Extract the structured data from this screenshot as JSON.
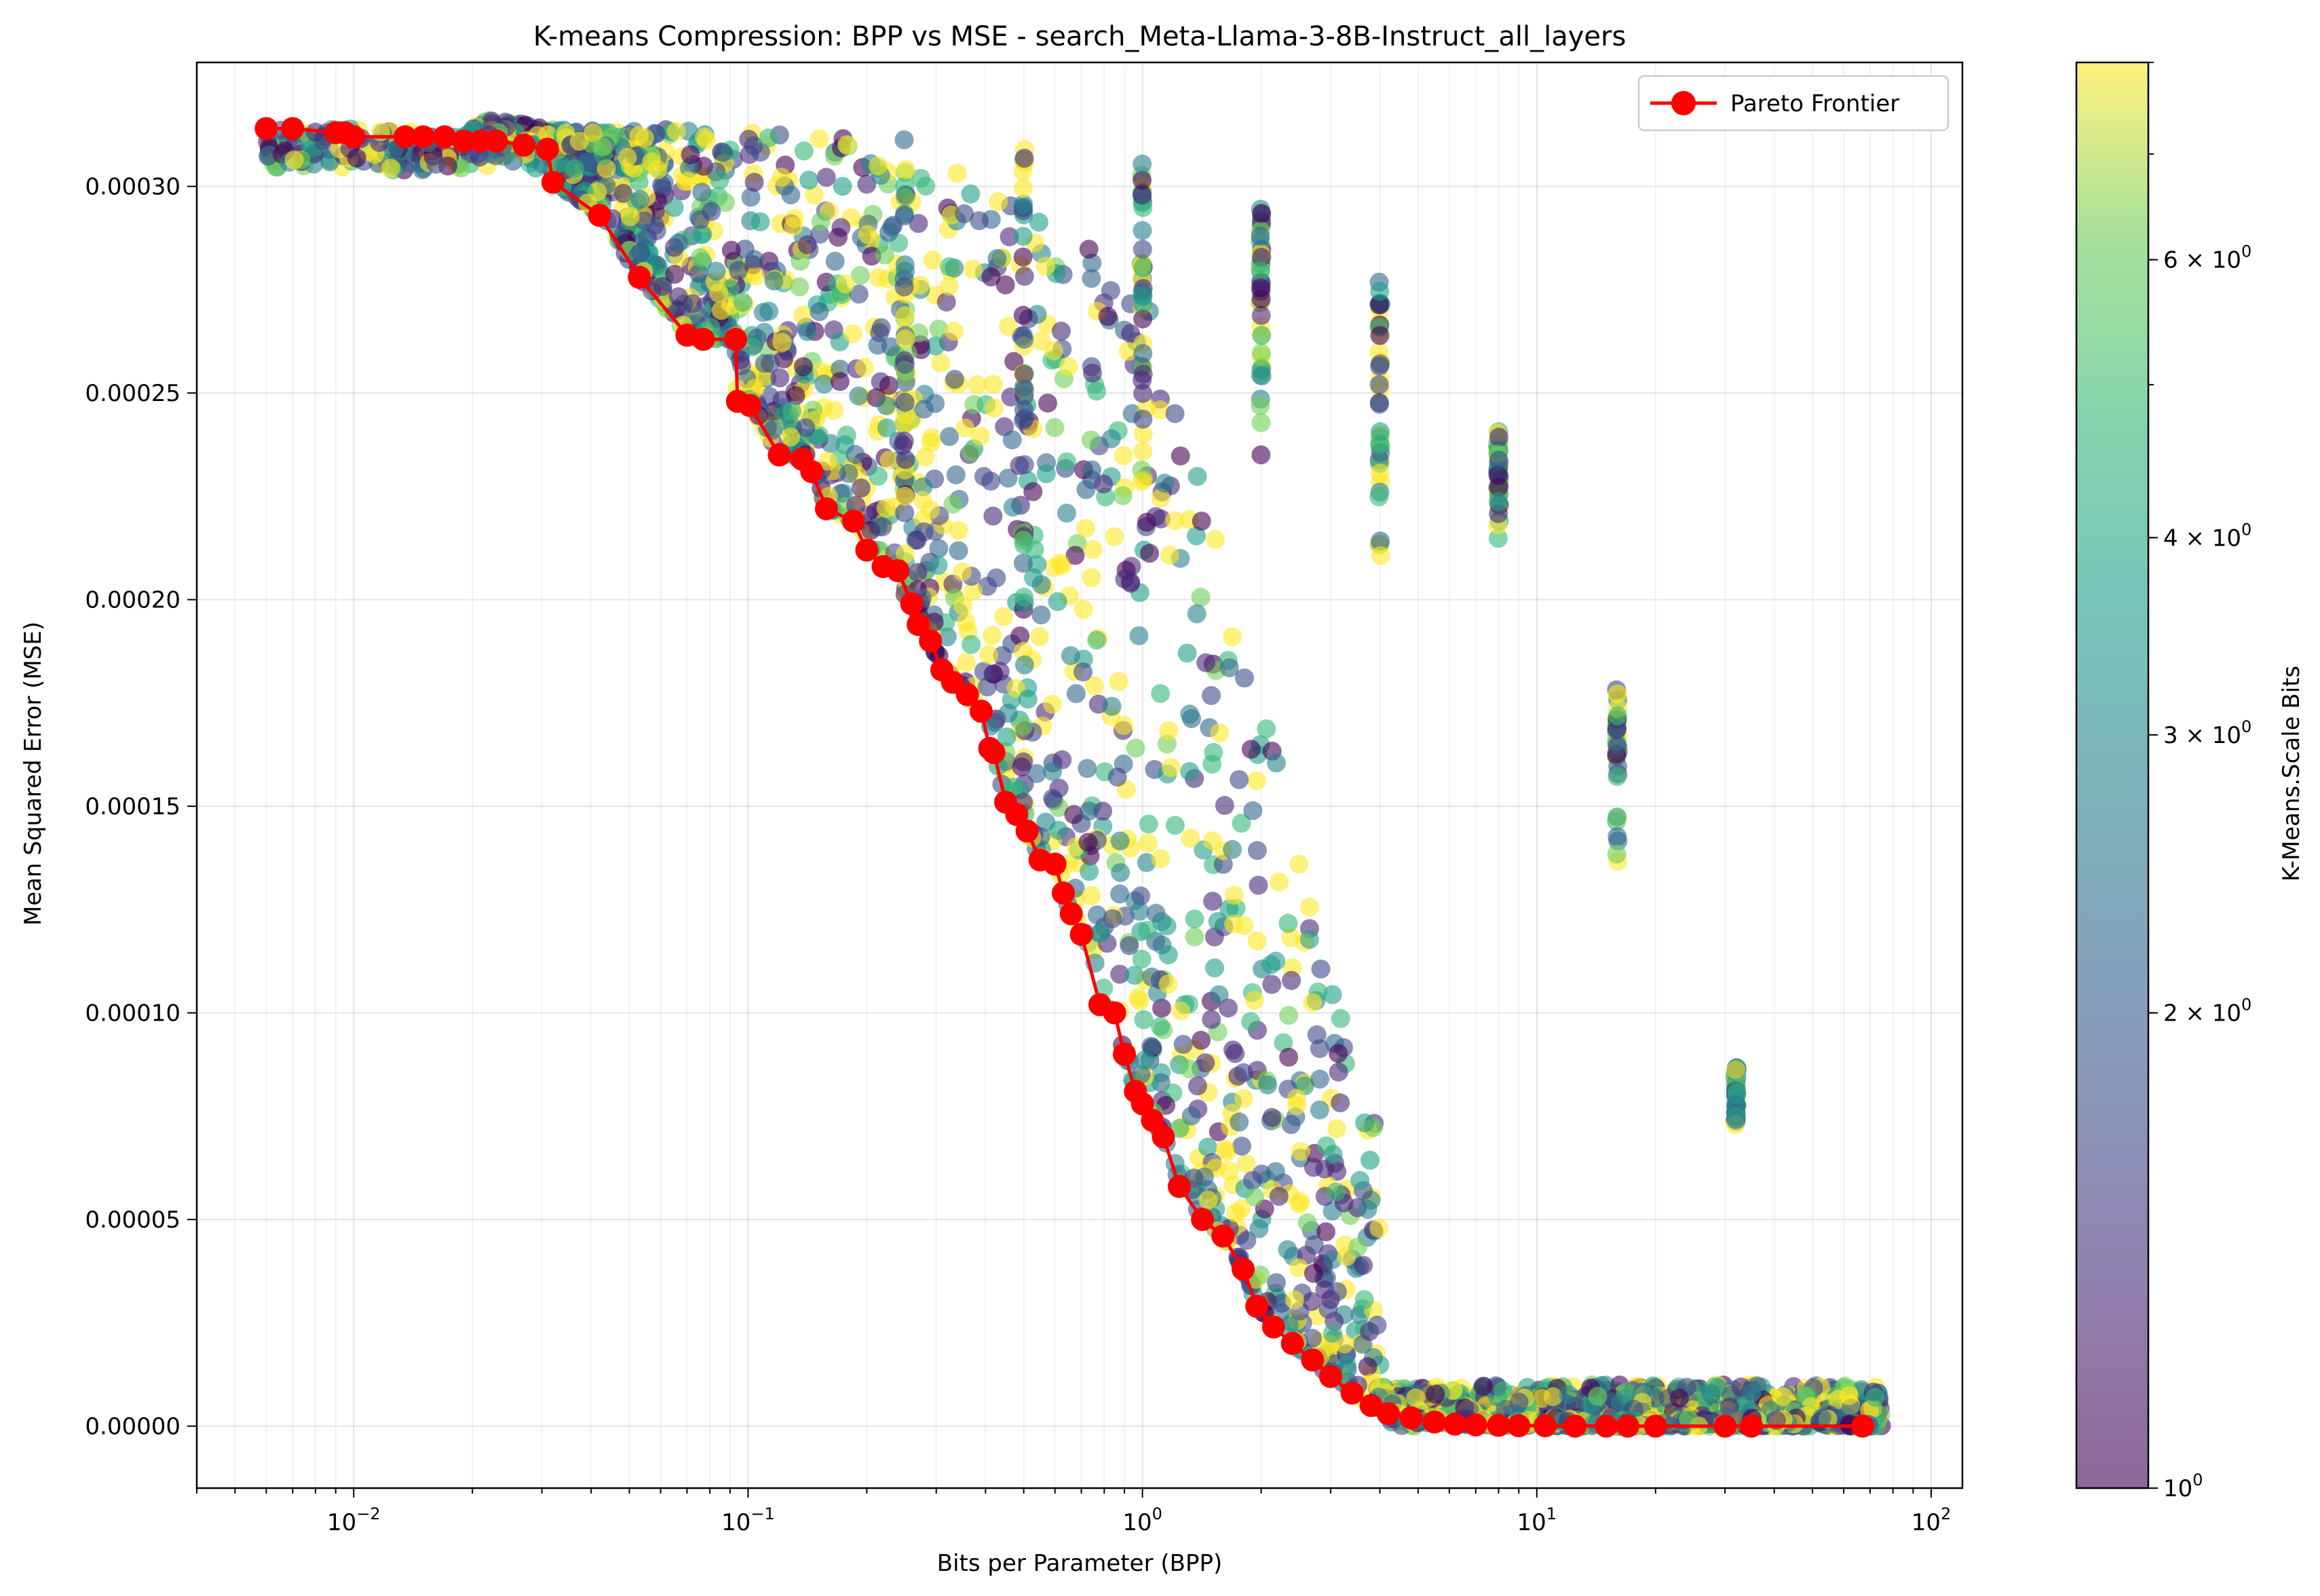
{
  "chart_data": {
    "type": "scatter",
    "title": "K-means Compression: BPP vs MSE - search_Meta-Llama-3-8B-Instruct_all_layers",
    "xlabel": "Bits per Parameter (BPP)",
    "ylabel": "Mean Squared Error (MSE)",
    "xscale": "log",
    "xlim": [
      0.004,
      120
    ],
    "ylim": [
      -1.5e-05,
      0.00033
    ],
    "grid": true,
    "x_ticks": [
      {
        "value": 0.01,
        "base": "10",
        "exp": "−2"
      },
      {
        "value": 0.1,
        "base": "10",
        "exp": "−1"
      },
      {
        "value": 1,
        "base": "10",
        "exp": "0"
      },
      {
        "value": 10,
        "base": "10",
        "exp": "1"
      },
      {
        "value": 100,
        "base": "10",
        "exp": "2"
      }
    ],
    "y_ticks": [
      {
        "value": 0.0,
        "label": "0.00000"
      },
      {
        "value": 5e-05,
        "label": "0.00005"
      },
      {
        "value": 0.0001,
        "label": "0.00010"
      },
      {
        "value": 0.00015,
        "label": "0.00015"
      },
      {
        "value": 0.0002,
        "label": "0.00020"
      },
      {
        "value": 0.00025,
        "label": "0.00025"
      },
      {
        "value": 0.0003,
        "label": "0.00030"
      }
    ],
    "legend": {
      "position": "top-right",
      "entries": [
        {
          "label": "Pareto Frontier",
          "color": "#ff0000"
        }
      ]
    },
    "colorbar": {
      "label": "K-Means.Scale Bits",
      "scale": "log",
      "range": [
        1,
        8
      ],
      "ticks": [
        {
          "value": 1,
          "label": "10",
          "exp": "0",
          "prefix": ""
        },
        {
          "value": 2,
          "label": "10",
          "exp": "0",
          "prefix": "2 × "
        },
        {
          "value": 3,
          "label": "10",
          "exp": "0",
          "prefix": "3 × "
        },
        {
          "value": 4,
          "label": "10",
          "exp": "0",
          "prefix": "4 × "
        },
        {
          "value": 6,
          "label": "10",
          "exp": "0",
          "prefix": "6 × "
        }
      ],
      "colormap": "viridis"
    },
    "pareto_frontier": {
      "name": "Pareto Frontier",
      "color": "#ff0000",
      "x": [
        0.006,
        0.007,
        0.009,
        0.0095,
        0.01,
        0.0135,
        0.015,
        0.017,
        0.019,
        0.021,
        0.023,
        0.027,
        0.031,
        0.032,
        0.042,
        0.053,
        0.07,
        0.077,
        0.093,
        0.094,
        0.101,
        0.12,
        0.137,
        0.145,
        0.158,
        0.185,
        0.2,
        0.22,
        0.24,
        0.26,
        0.27,
        0.29,
        0.31,
        0.33,
        0.36,
        0.39,
        0.41,
        0.42,
        0.45,
        0.48,
        0.51,
        0.55,
        0.6,
        0.63,
        0.66,
        0.7,
        0.78,
        0.85,
        0.9,
        0.96,
        1.0,
        1.06,
        1.13,
        1.24,
        1.42,
        1.6,
        1.8,
        1.95,
        2.15,
        2.4,
        2.7,
        3.0,
        3.4,
        3.8,
        4.2,
        4.8,
        5.5,
        6.2,
        7.0,
        8.0,
        9.0,
        10.5,
        12.5,
        15.0,
        17.0,
        20.0,
        30.0,
        35.0,
        67.0
      ],
      "y": [
        0.000314,
        0.000314,
        0.000313,
        0.000313,
        0.000312,
        0.000312,
        0.000312,
        0.000312,
        0.000311,
        0.000311,
        0.000311,
        0.00031,
        0.000309,
        0.000301,
        0.000293,
        0.000278,
        0.000264,
        0.000263,
        0.000263,
        0.000248,
        0.000247,
        0.000235,
        0.000234,
        0.000231,
        0.000222,
        0.000219,
        0.000212,
        0.000208,
        0.000207,
        0.000199,
        0.000194,
        0.00019,
        0.000183,
        0.00018,
        0.000177,
        0.000173,
        0.000164,
        0.000163,
        0.000151,
        0.000148,
        0.000144,
        0.000137,
        0.000136,
        0.000129,
        0.000124,
        0.000119,
        0.000102,
        0.0001,
        9e-05,
        8.1e-05,
        7.8e-05,
        7.4e-05,
        7e-05,
        5.8e-05,
        5e-05,
        4.6e-05,
        3.8e-05,
        2.9e-05,
        2.4e-05,
        2e-05,
        1.6e-05,
        1.2e-05,
        8e-06,
        5e-06,
        3e-06,
        2e-06,
        1e-06,
        5e-07,
        3e-07,
        2e-07,
        1e-07,
        1e-07,
        0.0,
        0.0,
        0.0,
        0.0,
        0.0,
        0.0,
        0.0
      ]
    },
    "scatter_summary": "Thousands of configurations colored by K-Means.Scale Bits; dense cloud above frontier with vertical columns at BPP 0.25, 0.5, 1, 2, 4, 8, 16, 32",
    "scatter_series": [
      {
        "x": 0.25,
        "y_range": [
          0.000195,
          0.000313
        ]
      },
      {
        "x": 0.5,
        "y_range": [
          0.000149,
          0.000309
        ]
      },
      {
        "x": 1.0,
        "y_range": [
          0.000225,
          0.000306
        ]
      },
      {
        "x": 2.0,
        "y_range": [
          0.000229,
          0.000296
        ]
      },
      {
        "x": 4.0,
        "y_range": [
          0.000206,
          0.000277
        ]
      },
      {
        "x": 8.0,
        "y_range": [
          0.000213,
          0.000241
        ]
      },
      {
        "x": 16.0,
        "y_range": [
          0.000132,
          0.00018
        ]
      },
      {
        "x": 32.0,
        "y_range": [
          6.8e-05,
          8.7e-05
        ]
      }
    ]
  }
}
